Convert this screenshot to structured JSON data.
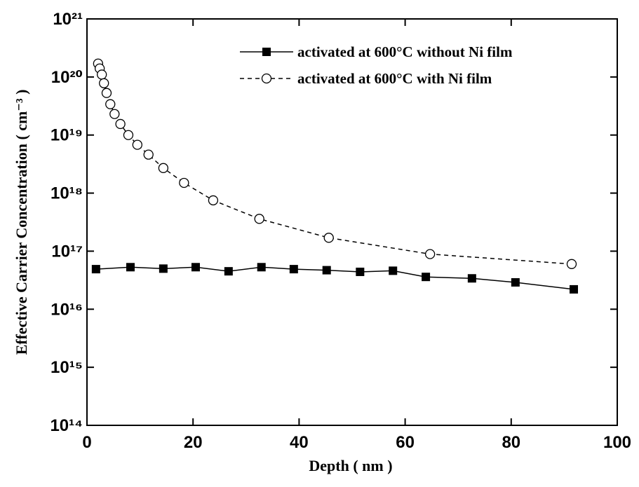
{
  "chart_data": {
    "type": "line",
    "x_label": "Depth ( nm )",
    "y_label": "Effective Carrier Concentration ( cm⁻³ )",
    "xlim": [
      0,
      100
    ],
    "xticks": [
      0,
      20,
      40,
      60,
      80,
      100
    ],
    "ylim": [
      100000000000000.0,
      1e+21
    ],
    "log_y": true,
    "yticks": [
      {
        "value": 100000000000000.0,
        "label": "10¹⁴"
      },
      {
        "value": 1000000000000000.0,
        "label": "10¹⁵"
      },
      {
        "value": 1e+16,
        "label": "10¹⁶"
      },
      {
        "value": 1e+17,
        "label": "10¹⁷"
      },
      {
        "value": 1e+18,
        "label": "10¹⁸"
      },
      {
        "value": 1e+19,
        "label": "10¹⁹"
      },
      {
        "value": 1e+20,
        "label": "10²⁰"
      },
      {
        "value": 1e+21,
        "label": "10²¹"
      }
    ],
    "legend": "top-right",
    "series": [
      {
        "name": "activated at 600°C without Ni film",
        "color": "#000000",
        "marker": "square",
        "dashed": false,
        "x": [
          1.7,
          8.2,
          14.4,
          20.5,
          26.7,
          32.9,
          39.0,
          45.2,
          51.5,
          57.7,
          63.9,
          72.6,
          80.8,
          91.8
        ],
        "values": [
          4.9e+16,
          5.3e+16,
          5e+16,
          5.3e+16,
          4.5e+16,
          5.3e+16,
          4.9e+16,
          4.7e+16,
          4.4e+16,
          4.6e+16,
          3.6e+16,
          3.4e+16,
          2.9e+16,
          2.2e+16
        ]
      },
      {
        "name": "activated at 600°C with Ni film",
        "color": "#000000",
        "marker": "circle",
        "dashed": true,
        "x": [
          2.1,
          2.4,
          2.8,
          3.2,
          3.7,
          4.4,
          5.2,
          6.3,
          7.8,
          9.5,
          11.6,
          14.4,
          18.3,
          23.8,
          32.5,
          45.6,
          64.7,
          91.4
        ],
        "values": [
          1.7e+20,
          1.4e+20,
          1.1e+20,
          7.8e+19,
          5.3e+19,
          3.4e+19,
          2.3e+19,
          1.55e+19,
          1e+19,
          6.8e+18,
          4.6e+18,
          2.7e+18,
          1.5e+18,
          7.5e+17,
          3.6e+17,
          1.7e+17,
          8.9e+16,
          6e+16
        ]
      }
    ]
  }
}
